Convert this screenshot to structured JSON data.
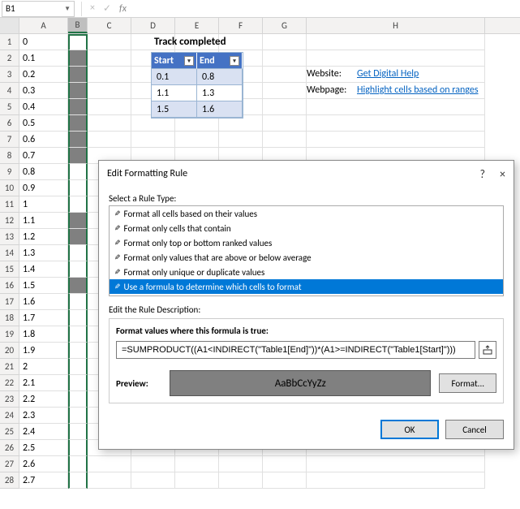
{
  "namebox": {
    "value": "B1"
  },
  "fx_icons": {
    "cancel": "×",
    "check": "✓",
    "fx": "fx"
  },
  "columns": [
    "A",
    "B",
    "C",
    "D",
    "E",
    "F",
    "G",
    "H"
  ],
  "selected_col": "B",
  "rows": [
    {
      "n": 1,
      "a": "0",
      "bshade": false
    },
    {
      "n": 2,
      "a": "0.1",
      "bshade": true
    },
    {
      "n": 3,
      "a": "0.2",
      "bshade": true
    },
    {
      "n": 4,
      "a": "0.3",
      "bshade": true
    },
    {
      "n": 5,
      "a": "0.4",
      "bshade": true
    },
    {
      "n": 6,
      "a": "0.5",
      "bshade": true
    },
    {
      "n": 7,
      "a": "0.6",
      "bshade": true
    },
    {
      "n": 8,
      "a": "0.7",
      "bshade": true
    },
    {
      "n": 9,
      "a": "0.8",
      "bshade": false
    },
    {
      "n": 10,
      "a": "0.9",
      "bshade": false
    },
    {
      "n": 11,
      "a": "1",
      "bshade": false
    },
    {
      "n": 12,
      "a": "1.1",
      "bshade": true
    },
    {
      "n": 13,
      "a": "1.2",
      "bshade": true
    },
    {
      "n": 14,
      "a": "1.3",
      "bshade": false
    },
    {
      "n": 15,
      "a": "1.4",
      "bshade": false
    },
    {
      "n": 16,
      "a": "1.5",
      "bshade": true
    },
    {
      "n": 17,
      "a": "1.6",
      "bshade": false
    },
    {
      "n": 18,
      "a": "1.7",
      "bshade": false
    },
    {
      "n": 19,
      "a": "1.8",
      "bshade": false
    },
    {
      "n": 20,
      "a": "1.9",
      "bshade": false
    },
    {
      "n": 21,
      "a": "2",
      "bshade": false
    },
    {
      "n": 22,
      "a": "2.1",
      "bshade": false
    },
    {
      "n": 23,
      "a": "2.2",
      "bshade": false
    },
    {
      "n": 24,
      "a": "2.3",
      "bshade": false
    },
    {
      "n": 25,
      "a": "2.4",
      "bshade": false
    },
    {
      "n": 26,
      "a": "2.5",
      "bshade": false
    },
    {
      "n": 27,
      "a": "2.6",
      "bshade": false
    },
    {
      "n": 28,
      "a": "2.7",
      "bshade": false
    }
  ],
  "sheet": {
    "title": "Track completed",
    "website_label": "Website:",
    "webpage_label": "Webpage:",
    "website_link": "Get Digital Help",
    "webpage_link": "Highlight cells based on ranges"
  },
  "table": {
    "headers": [
      "Start",
      "End"
    ],
    "rows": [
      [
        "0.1",
        "0.8"
      ],
      [
        "1.1",
        "1.3"
      ],
      [
        "1.5",
        "1.6"
      ]
    ],
    "header_bg": "#4472c4",
    "alt_bg": "#d9e1f2",
    "border": "#9ab5d3"
  },
  "dialog": {
    "title": "Edit Formatting Rule",
    "help": "?",
    "close": "×",
    "select_label": "Select a Rule Type:",
    "rules": [
      "Format all cells based on their values",
      "Format only cells that contain",
      "Format only top or bottom ranked values",
      "Format only values that are above or below average",
      "Format only unique or duplicate values",
      "Use a formula to determine which cells to format"
    ],
    "selected_rule_index": 5,
    "edit_label": "Edit the Rule Description:",
    "formula_label": "Format values where this formula is true:",
    "formula": "=SUMPRODUCT((A1<INDIRECT(\"Table1[End]\"))*(A1>=INDIRECT(\"Table1[Start]\")))",
    "preview_label": "Preview:",
    "preview_text": "AaBbCcYyZz",
    "format_btn": "Format...",
    "ok": "OK",
    "cancel": "Cancel",
    "colors": {
      "selection_bg": "#0078d7",
      "preview_fill": "#808080",
      "ok_border": "#0078d7"
    }
  }
}
